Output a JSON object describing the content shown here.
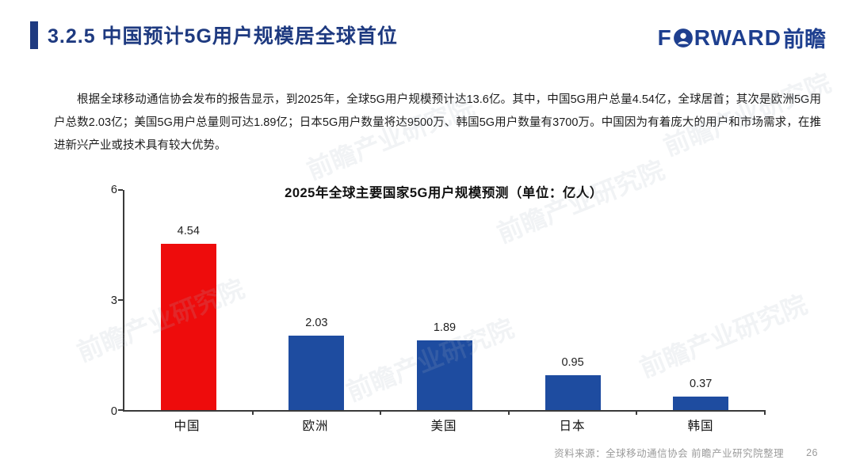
{
  "page": {
    "title": "3.2.5 中国预计5G用户规模居全球首位",
    "logo": {
      "en_f": "F",
      "en_rest": "RWARD",
      "cn": "前瞻"
    },
    "paragraph": "根据全球移动通信协会发布的报告显示，到2025年，全球5G用户规模预计达13.6亿。其中，中国5G用户总量4.54亿，全球居首；其次是欧洲5G用户总数2.03亿；美国5G用户总量则可达1.89亿；日本5G用户数量将达9500万、韩国5G用户数量有3700万。中国因为有着庞大的用户和市场需求，在推进新兴产业或技术具有较大优势。",
    "footer": {
      "source": "资料来源：全球移动通信协会  前瞻产业研究院整理",
      "page_number": "26"
    },
    "watermark_text": "前瞻产业研究院"
  },
  "colors": {
    "title_navy": "#1e3a80",
    "logo_navy": "#1e3f8f",
    "bar_blue": "#1e4ca0",
    "bar_red": "#ee0c0c",
    "axis": "#3a3a3a",
    "footer_gray": "#9b9b9b"
  },
  "chart_data": {
    "type": "bar",
    "title": "2025年全球主要国家5G用户规模预测（单位：亿人）",
    "categories": [
      "中国",
      "欧洲",
      "美国",
      "日本",
      "韩国"
    ],
    "values": [
      4.54,
      2.03,
      1.89,
      0.95,
      0.37
    ],
    "value_labels": [
      "4.54",
      "2.03",
      "1.89",
      "0.95",
      "0.37"
    ],
    "highlight_index": 0,
    "highlight_color": "#ee0c0c",
    "bar_color": "#1e4ca0",
    "xlabel": "",
    "ylabel": "",
    "ylim": [
      0,
      6
    ],
    "yticks": [
      0,
      3,
      6
    ],
    "grid": false,
    "legend": false
  }
}
